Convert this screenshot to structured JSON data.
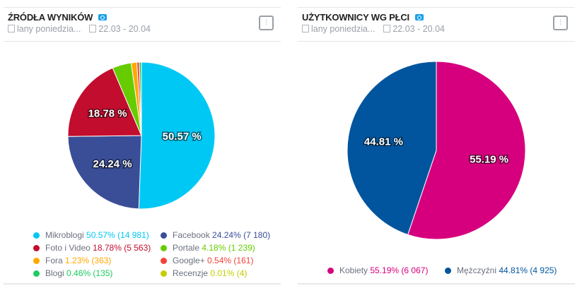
{
  "cards": [
    {
      "title": "ŹRÓDŁA WYNIKÓW",
      "project": "lany poniedzia...",
      "dates": "22.03 - 20.04"
    },
    {
      "title": "UŻYTKOWNICY WG PŁCI",
      "project": "lany poniedzia...",
      "dates": "22.03 - 20.04"
    }
  ],
  "chart_data": [
    {
      "type": "pie",
      "series": [
        {
          "name": "Mikroblogi",
          "percent": 50.57,
          "count": "14 981",
          "label": "50.57 %",
          "color": "#00c8f4",
          "legend_pct": "50.57%",
          "legend_count": "(14 981)"
        },
        {
          "name": "Facebook",
          "percent": 24.24,
          "count": "7 180",
          "label": "24.24 %",
          "color": "#3a4e98",
          "legend_pct": "24.24%",
          "legend_count": "(7 180)"
        },
        {
          "name": "Foto i Video",
          "percent": 18.78,
          "count": "5 563",
          "label": "18.78 %",
          "color": "#c20d2e",
          "legend_pct": "18.78%",
          "legend_count": "(5 563)"
        },
        {
          "name": "Portale",
          "percent": 4.18,
          "count": "1 239",
          "label": "",
          "color": "#66cc00",
          "legend_pct": "4.18%",
          "legend_count": "(1 239)"
        },
        {
          "name": "Fora",
          "percent": 1.23,
          "count": "363",
          "label": "",
          "color": "#ffa800",
          "legend_pct": "1.23%",
          "legend_count": "(363)"
        },
        {
          "name": "Google+",
          "percent": 0.54,
          "count": "161",
          "label": "",
          "color": "#f2433a",
          "legend_pct": "0.54%",
          "legend_count": "(161)"
        },
        {
          "name": "Blogi",
          "percent": 0.46,
          "count": "135",
          "label": "",
          "color": "#1ccc60",
          "legend_pct": "0.46%",
          "legend_count": "(135)"
        },
        {
          "name": "Recenzje",
          "percent": 0.01,
          "count": "4",
          "label": "",
          "color": "#c4cc00",
          "legend_pct": "0.01%",
          "legend_count": "(4)"
        }
      ]
    },
    {
      "type": "pie",
      "series": [
        {
          "name": "Kobiety",
          "percent": 55.19,
          "count": "6 067",
          "label": "55.19 %",
          "color": "#d6007e",
          "legend_pct": "55.19%",
          "legend_count": "(6 067)"
        },
        {
          "name": "Mężczyźni",
          "percent": 44.81,
          "count": "4 925",
          "label": "44.81 %",
          "color": "#00559e",
          "legend_pct": "44.81%",
          "legend_count": "(4 925)"
        }
      ]
    }
  ]
}
